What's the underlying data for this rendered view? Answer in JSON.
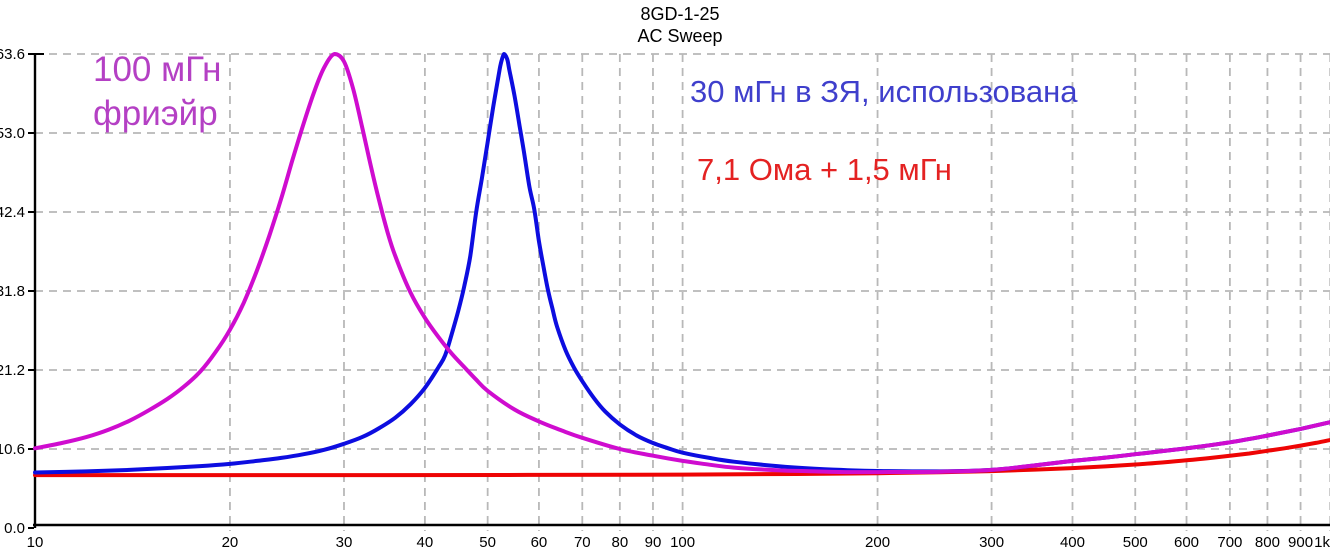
{
  "title": {
    "line1": "8GD-1-25",
    "line2": "AC Sweep"
  },
  "annotations": {
    "magenta": {
      "line1": "100 мГн",
      "line2": "фриэйр",
      "color": "#b440c4"
    },
    "blue": {
      "text": "30 мГн в ЗЯ, использована",
      "color": "#3f3fcc"
    },
    "red": {
      "text": "7,1 Ома + 1,5 мГн",
      "color": "#e42222"
    }
  },
  "colors": {
    "grid": "#b8b8b8",
    "axis": "#000000",
    "background": "#ffffff"
  },
  "chart_data": {
    "type": "line",
    "title": "8GD-1-25",
    "subtitle": "AC Sweep",
    "x_scale": "log",
    "x_range": [
      10,
      1000
    ],
    "y_range": [
      0,
      63.6
    ],
    "grid": "dashed",
    "legend_position": "none",
    "x_ticks": [
      {
        "value": 10,
        "label": "10"
      },
      {
        "value": 20,
        "label": "20"
      },
      {
        "value": 30,
        "label": "30"
      },
      {
        "value": 40,
        "label": "40"
      },
      {
        "value": 50,
        "label": "50"
      },
      {
        "value": 60,
        "label": "60"
      },
      {
        "value": 70,
        "label": "70"
      },
      {
        "value": 80,
        "label": "80"
      },
      {
        "value": 90,
        "label": "90"
      },
      {
        "value": 100,
        "label": "100"
      },
      {
        "value": 200,
        "label": "200"
      },
      {
        "value": 300,
        "label": "300"
      },
      {
        "value": 400,
        "label": "400"
      },
      {
        "value": 500,
        "label": "500"
      },
      {
        "value": 600,
        "label": "600"
      },
      {
        "value": 700,
        "label": "700"
      },
      {
        "value": 800,
        "label": "800"
      },
      {
        "value": 900,
        "label": "900"
      },
      {
        "value": 1000,
        "label": "1k"
      }
    ],
    "y_ticks": [
      {
        "value": 0,
        "label": "0.0"
      },
      {
        "value": 10.6,
        "label": "10.6"
      },
      {
        "value": 21.2,
        "label": "21.2"
      },
      {
        "value": 31.8,
        "label": "31.8"
      },
      {
        "value": 42.4,
        "label": "42.4"
      },
      {
        "value": 53.0,
        "label": "53.0"
      },
      {
        "value": 63.6,
        "label": "63.6"
      }
    ],
    "series": [
      {
        "name": "7,1 Ома + 1,5 мГн",
        "color": "#ee0404",
        "points": [
          [
            10,
            7.1
          ],
          [
            30,
            7.1
          ],
          [
            60,
            7.12
          ],
          [
            100,
            7.16
          ],
          [
            150,
            7.25
          ],
          [
            200,
            7.35
          ],
          [
            250,
            7.48
          ],
          [
            300,
            7.64
          ],
          [
            350,
            7.83
          ],
          [
            400,
            8.04
          ],
          [
            450,
            8.27
          ],
          [
            500,
            8.52
          ],
          [
            550,
            8.79
          ],
          [
            600,
            9.08
          ],
          [
            650,
            9.38
          ],
          [
            700,
            9.69
          ],
          [
            750,
            10.0
          ],
          [
            800,
            10.36
          ],
          [
            850,
            10.7
          ],
          [
            900,
            11.06
          ],
          [
            950,
            11.42
          ],
          [
            1000,
            11.8
          ]
        ]
      },
      {
        "name": "30 мГн в ЗЯ, использована",
        "color": "#0d0de0",
        "points": [
          [
            10,
            7.45
          ],
          [
            12,
            7.6
          ],
          [
            14,
            7.8
          ],
          [
            16,
            8.05
          ],
          [
            18,
            8.3
          ],
          [
            20,
            8.6
          ],
          [
            22,
            9.0
          ],
          [
            24,
            9.4
          ],
          [
            26,
            9.9
          ],
          [
            28,
            10.5
          ],
          [
            30,
            11.3
          ],
          [
            32,
            12.2
          ],
          [
            34,
            13.4
          ],
          [
            36,
            14.8
          ],
          [
            38,
            16.6
          ],
          [
            40,
            18.8
          ],
          [
            42,
            21.6
          ],
          [
            43,
            23.2
          ],
          [
            44,
            26.0
          ],
          [
            45,
            29.0
          ],
          [
            46,
            32.4
          ],
          [
            47,
            36.5
          ],
          [
            48,
            42.4
          ],
          [
            49,
            47.0
          ],
          [
            50,
            51.8
          ],
          [
            51,
            56.5
          ],
          [
            52,
            60.8
          ],
          [
            52.4,
            62.3
          ],
          [
            53,
            63.6
          ],
          [
            53.6,
            62.9
          ],
          [
            54,
            61.5
          ],
          [
            55,
            58.0
          ],
          [
            56,
            54.0
          ],
          [
            57,
            50.0
          ],
          [
            58,
            45.8
          ],
          [
            59,
            42.8
          ],
          [
            60,
            38.5
          ],
          [
            61,
            35.0
          ],
          [
            62,
            31.8
          ],
          [
            63,
            29.3
          ],
          [
            64,
            27.0
          ],
          [
            66,
            23.8
          ],
          [
            68,
            21.5
          ],
          [
            70,
            19.7
          ],
          [
            73,
            17.4
          ],
          [
            76,
            15.6
          ],
          [
            80,
            13.9
          ],
          [
            85,
            12.4
          ],
          [
            90,
            11.4
          ],
          [
            95,
            10.7
          ],
          [
            100,
            10.1
          ],
          [
            110,
            9.4
          ],
          [
            120,
            8.9
          ],
          [
            140,
            8.3
          ],
          [
            160,
            7.95
          ],
          [
            180,
            7.75
          ],
          [
            200,
            7.65
          ],
          [
            250,
            7.6
          ],
          [
            300,
            7.8
          ],
          [
            350,
            8.4
          ],
          [
            400,
            9.0
          ],
          [
            450,
            9.45
          ],
          [
            500,
            9.9
          ],
          [
            600,
            10.7
          ],
          [
            700,
            11.5
          ],
          [
            800,
            12.4
          ],
          [
            900,
            13.3
          ],
          [
            1000,
            14.2
          ]
        ]
      },
      {
        "name": "100 мГн фриэйр",
        "color": "#cf0ccf",
        "points": [
          [
            10,
            10.7
          ],
          [
            11,
            11.4
          ],
          [
            12,
            12.2
          ],
          [
            13,
            13.2
          ],
          [
            14,
            14.4
          ],
          [
            15,
            15.8
          ],
          [
            16,
            17.3
          ],
          [
            17,
            19.0
          ],
          [
            18,
            21.0
          ],
          [
            19,
            23.6
          ],
          [
            20,
            26.6
          ],
          [
            21,
            30.2
          ],
          [
            22,
            34.5
          ],
          [
            23,
            39.2
          ],
          [
            24,
            44.2
          ],
          [
            25,
            49.5
          ],
          [
            26,
            54.3
          ],
          [
            27,
            58.6
          ],
          [
            28,
            61.9
          ],
          [
            29,
            63.6
          ],
          [
            30,
            62.6
          ],
          [
            31,
            58.9
          ],
          [
            32,
            53.8
          ],
          [
            33,
            48.6
          ],
          [
            34,
            43.9
          ],
          [
            35,
            39.8
          ],
          [
            36,
            36.5
          ],
          [
            38,
            31.6
          ],
          [
            40,
            28.2
          ],
          [
            42,
            25.6
          ],
          [
            44,
            23.4
          ],
          [
            46,
            21.6
          ],
          [
            48,
            19.9
          ],
          [
            50,
            18.4
          ],
          [
            55,
            15.9
          ],
          [
            60,
            14.3
          ],
          [
            65,
            13.1
          ],
          [
            70,
            12.1
          ],
          [
            80,
            10.6
          ],
          [
            90,
            9.7
          ],
          [
            100,
            9.0
          ],
          [
            110,
            8.5
          ],
          [
            120,
            8.1
          ],
          [
            140,
            7.75
          ],
          [
            160,
            7.6
          ],
          [
            180,
            7.5
          ],
          [
            200,
            7.5
          ],
          [
            250,
            7.55
          ],
          [
            300,
            7.8
          ],
          [
            350,
            8.4
          ],
          [
            400,
            9.0
          ],
          [
            450,
            9.45
          ],
          [
            500,
            9.9
          ],
          [
            600,
            10.7
          ],
          [
            700,
            11.5
          ],
          [
            800,
            12.4
          ],
          [
            900,
            13.3
          ],
          [
            1000,
            14.2
          ]
        ]
      }
    ]
  }
}
